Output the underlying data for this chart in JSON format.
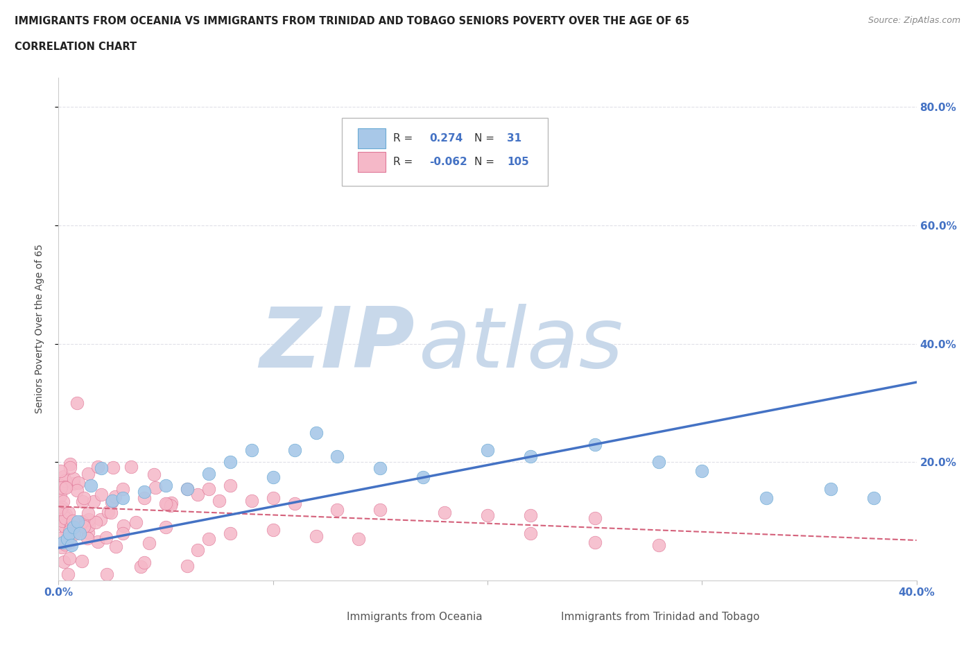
{
  "title_line1": "IMMIGRANTS FROM OCEANIA VS IMMIGRANTS FROM TRINIDAD AND TOBAGO SENIORS POVERTY OVER THE AGE OF 65",
  "title_line2": "CORRELATION CHART",
  "source_text": "Source: ZipAtlas.com",
  "ylabel": "Seniors Poverty Over the Age of 65",
  "xlim": [
    0.0,
    0.4
  ],
  "ylim": [
    0.0,
    0.85
  ],
  "series1_name": "Immigrants from Oceania",
  "series1_color": "#a8c8e8",
  "series1_edge_color": "#6aaad4",
  "series1_R": 0.274,
  "series1_N": 31,
  "series2_name": "Immigrants from Trinidad and Tobago",
  "series2_color": "#f5b8c8",
  "series2_edge_color": "#e07898",
  "series2_R": -0.062,
  "series2_N": 105,
  "trend1_color": "#4472c4",
  "trend2_color": "#d4607a",
  "trend1_x": [
    0.0,
    0.4
  ],
  "trend1_y": [
    0.055,
    0.335
  ],
  "trend2_x": [
    0.0,
    0.4
  ],
  "trend2_y": [
    0.125,
    0.068
  ],
  "watermark_zip": "ZIP",
  "watermark_atlas": "atlas",
  "watermark_color": "#ccdaeb",
  "legend_color": "#4472c4",
  "background_color": "#ffffff",
  "grid_color": "#e0e0e8",
  "title_fontsize": 11,
  "source_fontsize": 9
}
